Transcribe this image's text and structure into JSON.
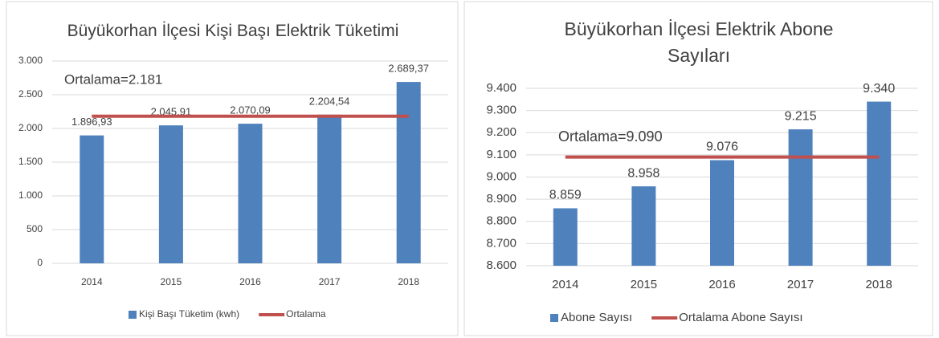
{
  "chart_data": [
    {
      "type": "bar",
      "title": "Büyükorhan İlçesi Kişi Başı Elektrik Tüketimi",
      "categories": [
        "2014",
        "2015",
        "2016",
        "2017",
        "2018"
      ],
      "series": [
        {
          "name": "Kişi Başı Tüketim (kwh)",
          "color": "#4f81bd",
          "type": "bar",
          "values": [
            1896.93,
            2045.91,
            2070.09,
            2204.54,
            2689.37
          ],
          "value_labels": [
            "1.896,93",
            "2.045,91",
            "2.070,09",
            "2.204,54",
            "2.689,37"
          ]
        },
        {
          "name": "Ortalama",
          "color": "#c0504d",
          "type": "line",
          "values": [
            2181,
            2181,
            2181,
            2181,
            2181
          ]
        }
      ],
      "annotation": "Ortalama=2.181",
      "ylim": [
        0,
        3000
      ],
      "yticks": [
        0,
        500,
        {
          "value": 1000,
          "label": "1.000"
        },
        {
          "value": 1500,
          "label": "1.500"
        },
        {
          "value": 2000,
          "label": "2.000"
        },
        {
          "value": 2500,
          "label": "2.500"
        },
        {
          "value": 3000,
          "label": "3.000"
        }
      ],
      "grid": true,
      "legend": "bottom"
    },
    {
      "type": "bar",
      "title": "Büyükorhan İlçesi Elektrik Abone Sayıları",
      "categories": [
        "2014",
        "2015",
        "2016",
        "2017",
        "2018"
      ],
      "series": [
        {
          "name": "Abone Sayısı",
          "color": "#4f81bd",
          "type": "bar",
          "values": [
            8859,
            8958,
            9076,
            9215,
            9340
          ],
          "value_labels": [
            "8.859",
            "8.958",
            "9.076",
            "9.215",
            "9.340"
          ]
        },
        {
          "name": "Ortalama Abone Sayısı",
          "color": "#c0504d",
          "type": "line",
          "values": [
            9090,
            9090,
            9090,
            9090,
            9090
          ]
        }
      ],
      "annotation": "Ortalama=9.090",
      "ylim": [
        8600,
        9400
      ],
      "yticks": [
        {
          "value": 8600,
          "label": "8.600"
        },
        {
          "value": 8700,
          "label": "8.700"
        },
        {
          "value": 8800,
          "label": "8.800"
        },
        {
          "value": 8900,
          "label": "8.900"
        },
        {
          "value": 9000,
          "label": "9.000"
        },
        {
          "value": 9100,
          "label": "9.100"
        },
        {
          "value": 9200,
          "label": "9.200"
        },
        {
          "value": 9300,
          "label": "9.300"
        },
        {
          "value": 9400,
          "label": "9.400"
        }
      ],
      "grid": true,
      "legend": "bottom"
    }
  ]
}
